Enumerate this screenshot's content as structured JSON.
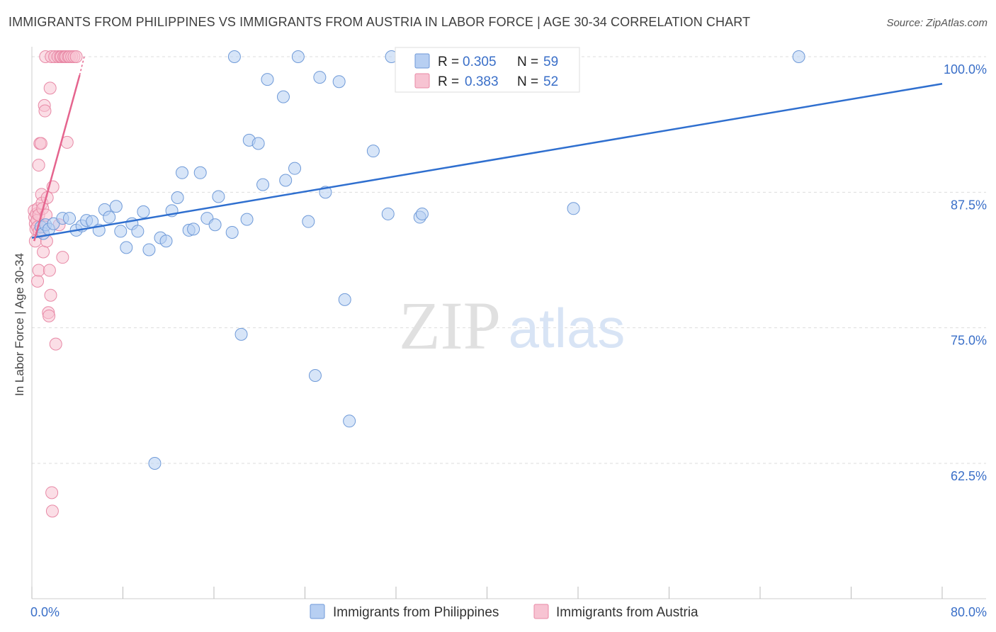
{
  "header": {
    "title": "IMMIGRANTS FROM PHILIPPINES VS IMMIGRANTS FROM AUSTRIA IN LABOR FORCE | AGE 30-34 CORRELATION CHART",
    "source": "Source: ZipAtlas.com"
  },
  "watermark": {
    "zip": "ZIP",
    "atlas": "atlas"
  },
  "colors": {
    "blue_fill": "#b7cff2",
    "blue_stroke": "#6f9ad8",
    "blue_line": "#2f6fcf",
    "pink_fill": "#f7c3d2",
    "pink_stroke": "#e889a6",
    "pink_line": "#e5648e",
    "grid": "#dddddd",
    "tick_text": "#3a6fc8"
  },
  "legend": {
    "r_label": "R =",
    "n_label": "N =",
    "entries": [
      {
        "r": "0.305",
        "n": "59"
      },
      {
        "r": "0.383",
        "n": "52"
      }
    ]
  },
  "chart_data": {
    "type": "scatter",
    "title": "IMMIGRANTS FROM PHILIPPINES VS IMMIGRANTS FROM AUSTRIA IN LABOR FORCE | AGE 30-34 CORRELATION CHART",
    "xlabel": "",
    "ylabel": "In Labor Force | Age 30-34",
    "xlim": [
      0,
      80
    ],
    "ylim": [
      50,
      100
    ],
    "x_tick_labels": [
      "0.0%",
      "80.0%"
    ],
    "y_ticks": [
      {
        "value": 62.5,
        "label": "62.5%"
      },
      {
        "value": 75.0,
        "label": "75.0%"
      },
      {
        "value": 87.5,
        "label": "87.5%"
      },
      {
        "value": 100.0,
        "label": "100.0%"
      }
    ],
    "series": [
      {
        "name": "Immigrants from Philippines",
        "color": "blue",
        "R": 0.305,
        "N": 59,
        "trend": {
          "x": [
            0,
            80
          ],
          "y": [
            83.3,
            97.5
          ]
        },
        "points": [
          [
            0.8,
            84.3
          ],
          [
            1.0,
            83.7
          ],
          [
            1.2,
            84.5
          ],
          [
            1.5,
            84.1
          ],
          [
            1.9,
            84.6
          ],
          [
            2.7,
            85.1
          ],
          [
            3.3,
            85.1
          ],
          [
            3.9,
            84.0
          ],
          [
            4.4,
            84.4
          ],
          [
            4.8,
            84.9
          ],
          [
            5.3,
            84.8
          ],
          [
            5.9,
            84.0
          ],
          [
            6.4,
            85.9
          ],
          [
            6.8,
            85.2
          ],
          [
            7.4,
            86.2
          ],
          [
            7.8,
            83.9
          ],
          [
            8.3,
            82.4
          ],
          [
            8.8,
            84.6
          ],
          [
            9.3,
            83.9
          ],
          [
            9.8,
            85.7
          ],
          [
            10.3,
            82.2
          ],
          [
            11.3,
            83.3
          ],
          [
            11.8,
            83.0
          ],
          [
            12.3,
            85.8
          ],
          [
            12.8,
            87.0
          ],
          [
            13.2,
            89.3
          ],
          [
            13.8,
            84.0
          ],
          [
            14.2,
            84.1
          ],
          [
            14.8,
            89.3
          ],
          [
            15.4,
            85.1
          ],
          [
            16.1,
            84.5
          ],
          [
            16.4,
            87.1
          ],
          [
            17.6,
            83.8
          ],
          [
            17.8,
            100.0
          ],
          [
            18.4,
            74.4
          ],
          [
            18.9,
            85.0
          ],
          [
            19.1,
            92.3
          ],
          [
            19.9,
            92.0
          ],
          [
            20.3,
            88.2
          ],
          [
            20.7,
            97.9
          ],
          [
            22.1,
            96.3
          ],
          [
            22.3,
            88.6
          ],
          [
            23.1,
            89.7
          ],
          [
            23.4,
            100.0
          ],
          [
            24.3,
            84.8
          ],
          [
            24.9,
            70.6
          ],
          [
            25.3,
            98.1
          ],
          [
            25.8,
            87.5
          ],
          [
            27.0,
            97.7
          ],
          [
            27.5,
            77.6
          ],
          [
            27.9,
            66.4
          ],
          [
            30.0,
            91.3
          ],
          [
            31.3,
            85.5
          ],
          [
            31.6,
            100.0
          ],
          [
            34.1,
            85.2
          ],
          [
            34.3,
            85.5
          ],
          [
            47.6,
            86.0
          ],
          [
            10.8,
            62.5
          ],
          [
            67.4,
            100.0
          ]
        ]
      },
      {
        "name": "Immigrants from Austria",
        "color": "pink",
        "R": 0.383,
        "N": 52,
        "trend": {
          "x": [
            0.2,
            4.2
          ],
          "y": [
            83.0,
            98.3
          ]
        },
        "trend_dashed": {
          "x": [
            4.2,
            4.6
          ],
          "y": [
            98.3,
            100.0
          ]
        },
        "points": [
          [
            0.2,
            85.8
          ],
          [
            0.25,
            85.2
          ],
          [
            0.3,
            84.6
          ],
          [
            0.35,
            84.1
          ],
          [
            0.4,
            85.5
          ],
          [
            0.45,
            84.9
          ],
          [
            0.5,
            84.3
          ],
          [
            0.55,
            86.0
          ],
          [
            0.6,
            85.4
          ],
          [
            0.65,
            83.9
          ],
          [
            0.3,
            83.0
          ],
          [
            0.5,
            79.3
          ],
          [
            0.6,
            80.3
          ],
          [
            0.6,
            90.0
          ],
          [
            0.7,
            92.0
          ],
          [
            0.8,
            92.0
          ],
          [
            0.85,
            87.3
          ],
          [
            0.9,
            86.5
          ],
          [
            0.95,
            86.0
          ],
          [
            1.0,
            82.0
          ],
          [
            1.05,
            84.3
          ],
          [
            1.1,
            95.5
          ],
          [
            1.15,
            95.0
          ],
          [
            1.2,
            100.0
          ],
          [
            1.25,
            85.4
          ],
          [
            1.3,
            83.0
          ],
          [
            1.35,
            87.0
          ],
          [
            1.45,
            76.4
          ],
          [
            1.5,
            76.1
          ],
          [
            1.55,
            80.3
          ],
          [
            1.6,
            97.1
          ],
          [
            1.65,
            78.0
          ],
          [
            1.7,
            100.0
          ],
          [
            1.75,
            59.8
          ],
          [
            1.8,
            58.1
          ],
          [
            1.85,
            88.0
          ],
          [
            2.0,
            100.0
          ],
          [
            2.1,
            73.5
          ],
          [
            2.3,
            100.0
          ],
          [
            2.4,
            84.5
          ],
          [
            2.5,
            100.0
          ],
          [
            2.6,
            100.0
          ],
          [
            2.7,
            81.5
          ],
          [
            2.8,
            100.0
          ],
          [
            2.9,
            100.0
          ],
          [
            3.0,
            100.0
          ],
          [
            3.1,
            92.1
          ],
          [
            3.2,
            100.0
          ],
          [
            3.3,
            100.0
          ],
          [
            3.5,
            100.0
          ],
          [
            3.7,
            100.0
          ],
          [
            3.9,
            100.0
          ]
        ]
      }
    ],
    "legend_position": "top-center",
    "grid": true
  }
}
